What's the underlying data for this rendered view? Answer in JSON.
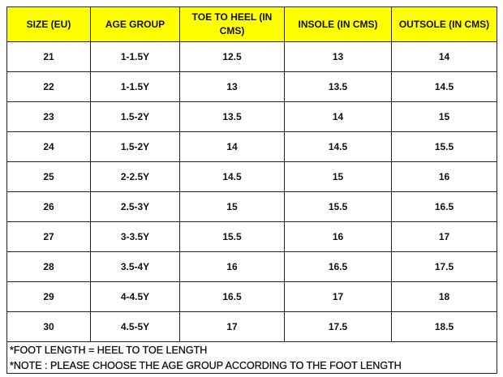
{
  "table": {
    "header": [
      "SIZE (EU)",
      "AGE GROUP",
      "TOE TO HEEL (IN CMS)",
      "INSOLE (IN CMS)",
      "OUTSOLE (IN CMS)"
    ],
    "rows": [
      [
        "21",
        "1-1.5Y",
        "12.5",
        "13",
        "14"
      ],
      [
        "22",
        "1-1.5Y",
        "13",
        "13.5",
        "14.5"
      ],
      [
        "23",
        "1.5-2Y",
        "13.5",
        "14",
        "15"
      ],
      [
        "24",
        "1.5-2Y",
        "14",
        "14.5",
        "15.5"
      ],
      [
        "25",
        "2-2.5Y",
        "14.5",
        "15",
        "16"
      ],
      [
        "26",
        "2.5-3Y",
        "15",
        "15.5",
        "16.5"
      ],
      [
        "27",
        "3-3.5Y",
        "15.5",
        "16",
        "17"
      ],
      [
        "28",
        "3.5-4Y",
        "16",
        "16.5",
        "17.5"
      ],
      [
        "29",
        "4-4.5Y",
        "16.5",
        "17",
        "18"
      ],
      [
        "30",
        "4.5-5Y",
        "17",
        "17.5",
        "18.5"
      ]
    ],
    "notes": [
      "*FOOT LENGTH = HEEL TO TOE LENGTH",
      "*NOTE : PLEASE CHOOSE THE AGE GROUP ACCORDING TO THE FOOT LENGTH"
    ]
  }
}
